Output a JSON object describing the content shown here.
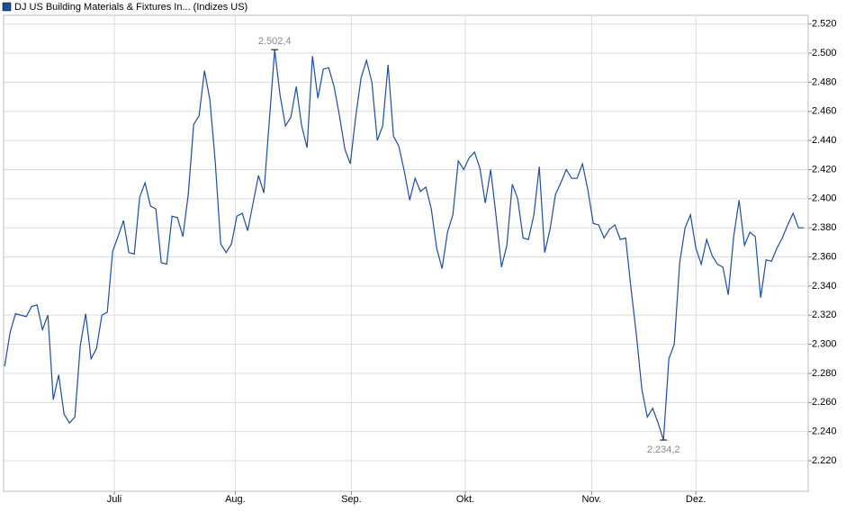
{
  "chart_data": {
    "type": "line",
    "series": [
      {
        "name": "DJ US Building Materials & Fixtures In... (Indizes US)",
        "color": "#1f4e9b",
        "values": [
          2285,
          2308,
          2321,
          2320,
          2319,
          2326,
          2327,
          2310,
          2320,
          2262,
          2279,
          2252,
          2246,
          2250,
          2299,
          2321,
          2290,
          2297,
          2320,
          2322,
          2364,
          2374,
          2385,
          2363,
          2362,
          2401,
          2411,
          2395,
          2393,
          2356,
          2355,
          2388,
          2387,
          2374,
          2403,
          2451,
          2457,
          2488,
          2468,
          2425,
          2369,
          2363,
          2369,
          2388,
          2390,
          2378,
          2397,
          2416,
          2404,
          2453,
          2502.4,
          2471,
          2450,
          2456,
          2477,
          2450,
          2435,
          2498,
          2469,
          2489,
          2490,
          2477,
          2457,
          2434,
          2424,
          2456,
          2483,
          2495,
          2480,
          2440,
          2450,
          2492,
          2443,
          2436,
          2419,
          2399,
          2414,
          2405,
          2408,
          2393,
          2366,
          2352,
          2377,
          2389,
          2426,
          2420,
          2428,
          2432,
          2421,
          2397,
          2420,
          2388,
          2353,
          2368,
          2410,
          2400,
          2373,
          2372,
          2389,
          2422,
          2363,
          2379,
          2403,
          2411,
          2420,
          2414,
          2414,
          2424,
          2406,
          2383,
          2382,
          2373,
          2379,
          2382,
          2372,
          2373,
          2338,
          2306,
          2269,
          2250,
          2256,
          2246,
          2234.2,
          2290,
          2300,
          2356,
          2380,
          2389,
          2366,
          2355,
          2372,
          2361,
          2355,
          2353,
          2334,
          2374,
          2399,
          2368,
          2377,
          2374,
          2332,
          2358,
          2357,
          2366,
          2373,
          2382,
          2390,
          2380,
          2380
        ]
      }
    ],
    "max_label": "2.502,4",
    "min_label": "2.234,2",
    "xlim": [
      -0.2,
      148.8
    ],
    "xticks": [
      {
        "value": 20.3,
        "label": "Juli"
      },
      {
        "value": 42.7,
        "label": "Aug."
      },
      {
        "value": 64.2,
        "label": "Sep."
      },
      {
        "value": 85.3,
        "label": "Okt."
      },
      {
        "value": 108.7,
        "label": "Nov."
      },
      {
        "value": 128,
        "label": "Dez."
      }
    ],
    "ylim": [
      2199,
      2526
    ],
    "yticks": [
      {
        "value": 2220,
        "label": "2.220"
      },
      {
        "value": 2240,
        "label": "2.240"
      },
      {
        "value": 2260,
        "label": "2.260"
      },
      {
        "value": 2280,
        "label": "2.280"
      },
      {
        "value": 2300,
        "label": "2.300"
      },
      {
        "value": 2320,
        "label": "2.320"
      },
      {
        "value": 2340,
        "label": "2.340"
      },
      {
        "value": 2360,
        "label": "2.360"
      },
      {
        "value": 2380,
        "label": "2.380"
      },
      {
        "value": 2400,
        "label": "2.400"
      },
      {
        "value": 2420,
        "label": "2.420"
      },
      {
        "value": 2440,
        "label": "2.440"
      },
      {
        "value": 2460,
        "label": "2.460"
      },
      {
        "value": 2480,
        "label": "2.480"
      },
      {
        "value": 2500,
        "label": "2.500"
      },
      {
        "value": 2520,
        "label": "2.520"
      }
    ],
    "grid": true
  }
}
